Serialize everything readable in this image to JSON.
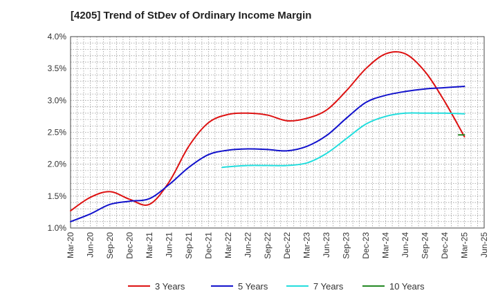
{
  "chart_data": {
    "type": "line",
    "title": "[4205]  Trend of StDev of Ordinary Income Margin",
    "xlabel": "",
    "ylabel": "",
    "ylim": [
      1.0,
      4.0
    ],
    "y_ticks": [
      "1.0%",
      "1.5%",
      "2.0%",
      "2.5%",
      "3.0%",
      "3.5%",
      "4.0%"
    ],
    "y_tick_values": [
      1.0,
      1.5,
      2.0,
      2.5,
      3.0,
      3.5,
      4.0
    ],
    "x_ticks": [
      "Mar-20",
      "Jun-20",
      "Sep-20",
      "Dec-20",
      "Mar-21",
      "Jun-21",
      "Sep-21",
      "Dec-21",
      "Mar-22",
      "Jun-22",
      "Sep-22",
      "Dec-22",
      "Mar-23",
      "Jun-23",
      "Sep-23",
      "Dec-23",
      "Mar-24",
      "Jun-24",
      "Sep-24",
      "Dec-24",
      "Mar-25",
      "Jun-25"
    ],
    "grid": true,
    "legend_position": "bottom",
    "series": [
      {
        "name": "3 Years",
        "color": "#dd1111",
        "points": [
          [
            0,
            1.27
          ],
          [
            1,
            1.48
          ],
          [
            2,
            1.57
          ],
          [
            3,
            1.45
          ],
          [
            4,
            1.37
          ],
          [
            5,
            1.72
          ],
          [
            6,
            2.28
          ],
          [
            7,
            2.65
          ],
          [
            8,
            2.78
          ],
          [
            9,
            2.8
          ],
          [
            10,
            2.77
          ],
          [
            11,
            2.68
          ],
          [
            12,
            2.72
          ],
          [
            13,
            2.85
          ],
          [
            14,
            3.15
          ],
          [
            15,
            3.5
          ],
          [
            16,
            3.73
          ],
          [
            17,
            3.73
          ],
          [
            18,
            3.45
          ],
          [
            19,
            2.98
          ],
          [
            20,
            2.43
          ]
        ]
      },
      {
        "name": "5 Years",
        "color": "#1111cc",
        "points": [
          [
            0,
            1.1
          ],
          [
            1,
            1.22
          ],
          [
            2,
            1.37
          ],
          [
            3,
            1.42
          ],
          [
            4,
            1.46
          ],
          [
            5,
            1.68
          ],
          [
            6,
            1.95
          ],
          [
            7,
            2.15
          ],
          [
            8,
            2.22
          ],
          [
            9,
            2.24
          ],
          [
            10,
            2.23
          ],
          [
            11,
            2.21
          ],
          [
            12,
            2.28
          ],
          [
            13,
            2.45
          ],
          [
            14,
            2.72
          ],
          [
            15,
            2.97
          ],
          [
            16,
            3.08
          ],
          [
            17,
            3.14
          ],
          [
            18,
            3.18
          ],
          [
            19,
            3.2
          ],
          [
            20,
            3.22
          ]
        ]
      },
      {
        "name": "7 Years",
        "color": "#22dddd",
        "points": [
          [
            7.7,
            1.95
          ],
          [
            8,
            1.96
          ],
          [
            9,
            1.98
          ],
          [
            10,
            1.98
          ],
          [
            11,
            1.98
          ],
          [
            12,
            2.02
          ],
          [
            13,
            2.17
          ],
          [
            14,
            2.4
          ],
          [
            15,
            2.63
          ],
          [
            16,
            2.75
          ],
          [
            17,
            2.8
          ],
          [
            18,
            2.8
          ],
          [
            19,
            2.8
          ],
          [
            20,
            2.79
          ]
        ]
      },
      {
        "name": "10 Years",
        "color": "#228822",
        "points": [
          [
            19.7,
            2.46
          ],
          [
            20,
            2.46
          ]
        ]
      }
    ]
  }
}
